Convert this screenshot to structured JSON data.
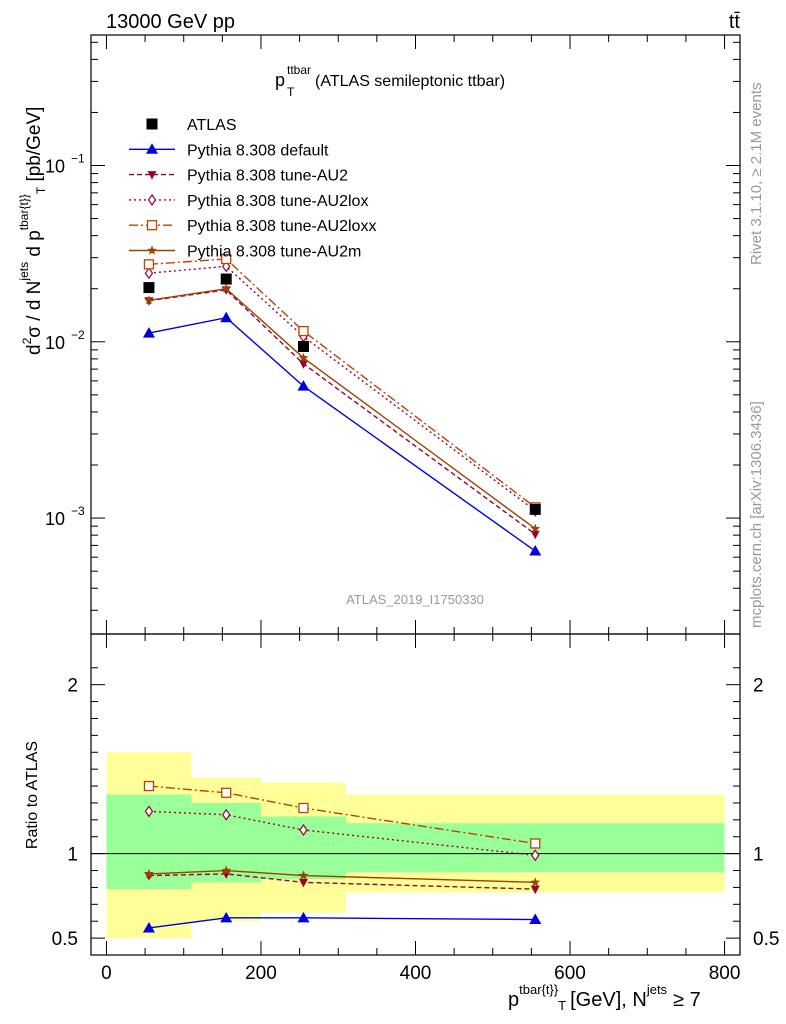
{
  "header": {
    "left": "13000 GeV pp",
    "right": "tt̄"
  },
  "side_labels": {
    "rivet": "Rivet 3.1.10, ≥ 2.1M events",
    "mcplots": "mcplots.cern.ch [arXiv:1306.3436]"
  },
  "chart_data": {
    "type": "line",
    "title_main": "p",
    "title_sub": "T",
    "title_sup": "ttbar",
    "title_rest": "(ATLAS semileptonic ttbar)",
    "watermark": "ATLAS_2019_I1750330",
    "xlabel": {
      "main": "p",
      "sup": "tbar{t}",
      "close": "}",
      "sub": "T",
      "units": "[GeV], N",
      "nsup": "jets",
      "tail": "≥ 7"
    },
    "ylabel": {
      "d2": "d",
      "d2sup": "2",
      "sigma": "σ  /  d N",
      "jets": "jets",
      "dp": " d p",
      "tbar": "tbar{t}",
      "close": "}",
      "T": "T",
      "units": " [pb/GeV]"
    },
    "ratio_ylabel": "Ratio to ATLAS",
    "xlim": [
      -20,
      820
    ],
    "ylim_main": [
      0.00022,
      0.55
    ],
    "ylim_ratio": [
      0.4,
      2.3
    ],
    "y_scale_main": "log",
    "x_ticks": [
      "0",
      "200",
      "400",
      "600",
      "800"
    ],
    "x_tick_values": [
      0,
      200,
      400,
      600,
      800
    ],
    "y_ticks_main": [
      {
        "value": 0.1,
        "base": "10",
        "exp": "−1"
      },
      {
        "value": 0.01,
        "base": "10",
        "exp": "−2"
      },
      {
        "value": 0.001,
        "base": "10",
        "exp": "−3"
      }
    ],
    "y_ticks_ratio": [
      {
        "value": 2,
        "label": "2"
      },
      {
        "value": 1,
        "label": "1"
      },
      {
        "value": 0.5,
        "label": "0.5"
      }
    ],
    "legend_position": "top-left",
    "bins": [
      {
        "lo": 0,
        "hi": 110,
        "x": 55
      },
      {
        "lo": 110,
        "hi": 200,
        "x": 155
      },
      {
        "lo": 200,
        "hi": 310,
        "x": 255
      },
      {
        "lo": 310,
        "hi": 800,
        "x": 555
      }
    ],
    "data": {
      "name": "ATLAS",
      "x": [
        55,
        155,
        255,
        555
      ],
      "y": [
        0.0203,
        0.0227,
        0.0094,
        0.00112
      ]
    },
    "ratio_bands": {
      "yellow": [
        [
          0.5,
          1.6
        ],
        [
          0.6,
          1.45
        ],
        [
          0.65,
          1.42
        ],
        [
          0.77,
          1.35
        ]
      ],
      "green": [
        [
          0.79,
          1.35
        ],
        [
          0.83,
          1.3
        ],
        [
          0.85,
          1.22
        ],
        [
          0.89,
          1.18
        ]
      ]
    },
    "series": [
      {
        "name": "Pythia 8.308 default",
        "color": "#0000dd",
        "marker": "triangle-up",
        "dash": "",
        "x": [
          55,
          155,
          255,
          555
        ],
        "y": [
          0.0112,
          0.0137,
          0.0056,
          0.00065
        ],
        "ratio": [
          0.56,
          0.62,
          0.62,
          0.61
        ]
      },
      {
        "name": "Pythia 8.308 tune-AU2",
        "color": "#990033",
        "marker": "triangle-down",
        "dash": "5,3",
        "x": [
          55,
          155,
          255,
          555
        ],
        "y": [
          0.0171,
          0.0197,
          0.0075,
          0.00081
        ],
        "ratio": [
          0.87,
          0.88,
          0.83,
          0.79
        ]
      },
      {
        "name": "Pythia 8.308 tune-AU2lox",
        "color": "#990033",
        "marker": "diamond-open",
        "dash": "2,3",
        "x": [
          55,
          155,
          255,
          555
        ],
        "y": [
          0.0245,
          0.0268,
          0.0107,
          0.0011
        ],
        "ratio": [
          1.25,
          1.23,
          1.14,
          0.99
        ]
      },
      {
        "name": "Pythia 8.308 tune-AU2loxx",
        "color": "#bb4400",
        "marker": "square-open",
        "dash": "9,3,2,3",
        "x": [
          55,
          155,
          255,
          555
        ],
        "y": [
          0.0275,
          0.0295,
          0.0115,
          0.00115
        ],
        "ratio": [
          1.4,
          1.36,
          1.27,
          1.06
        ]
      },
      {
        "name": "Pythia 8.308 tune-AU2m",
        "color": "#994400",
        "marker": "star",
        "dash": "",
        "x": [
          55,
          155,
          255,
          555
        ],
        "y": [
          0.0172,
          0.02,
          0.0081,
          0.00087
        ],
        "ratio": [
          0.88,
          0.9,
          0.87,
          0.83
        ]
      }
    ]
  }
}
